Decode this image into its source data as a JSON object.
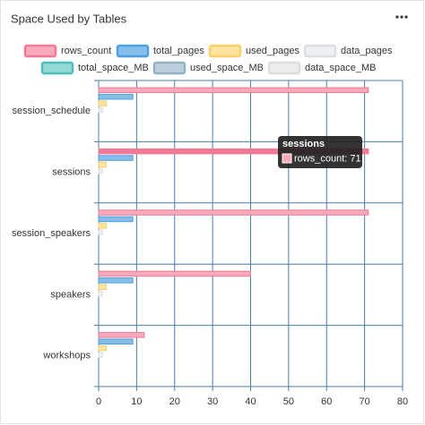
{
  "chart_data": {
    "type": "hbar",
    "title": "Space Used by Tables",
    "categories": [
      "session_schedule",
      "sessions",
      "session_speakers",
      "speakers",
      "workshops"
    ],
    "series": [
      {
        "name": "rows_count",
        "color": "#f8a9bb",
        "border": "#f07a95",
        "values": [
          71,
          71,
          71,
          40,
          12
        ]
      },
      {
        "name": "total_pages",
        "color": "#86bde9",
        "border": "#4fa0e0",
        "values": [
          9,
          9,
          9,
          9,
          9
        ]
      },
      {
        "name": "used_pages",
        "color": "#fde5a0",
        "border": "#f9d06a",
        "values": [
          2,
          2,
          2,
          2,
          2
        ]
      },
      {
        "name": "data_pages",
        "color": "#eef0f2",
        "border": "#dcdee2",
        "values": [
          1,
          1,
          1,
          1,
          1
        ]
      },
      {
        "name": "total_space_MB",
        "color": "#95dad4",
        "border": "#4cc0b8",
        "values": [
          0,
          0,
          0,
          0,
          0
        ]
      },
      {
        "name": "used_space_MB",
        "color": "#bccfdb",
        "border": "#93b2c3",
        "values": [
          0,
          0,
          0,
          0,
          0
        ]
      },
      {
        "name": "data_space_MB",
        "color": "#ececec",
        "border": "#dddddd",
        "values": [
          0,
          0,
          0,
          0,
          0
        ]
      }
    ],
    "xlim": [
      0,
      80
    ],
    "xticks": [
      0,
      10,
      20,
      30,
      40,
      50,
      60,
      70,
      80
    ],
    "grid": true,
    "tooltip": {
      "title": "sessions",
      "label": "rows_count: 71"
    }
  }
}
